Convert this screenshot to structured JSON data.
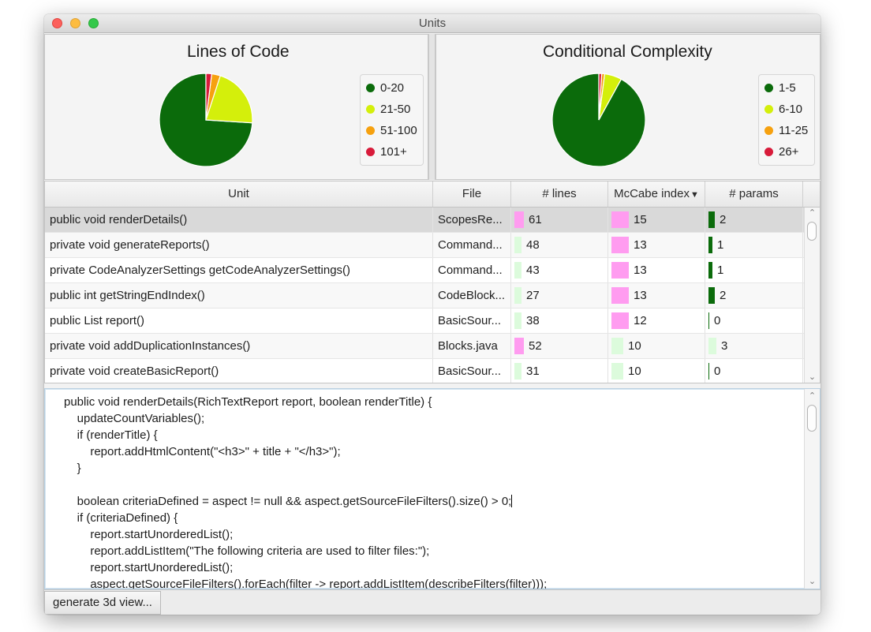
{
  "window": {
    "title": "Units"
  },
  "colors": {
    "dark_green": "#0b6b0b",
    "yellow_green": "#d4ef0b",
    "orange": "#f6a10f",
    "red": "#d81b3a",
    "pink": "#ff9cf0",
    "light_green": "#dcfbdc"
  },
  "charts": [
    {
      "chart_data": {
        "type": "pie",
        "title": "Lines of Code",
        "categories": [
          "0-20",
          "21-50",
          "51-100",
          "101+"
        ],
        "values": [
          74,
          21,
          3,
          2
        ],
        "colors": [
          "#0b6b0b",
          "#d4ef0b",
          "#f6a10f",
          "#d81b3a"
        ],
        "legend": "right"
      },
      "legend_items": [
        "0-20",
        "21-50",
        "51-100",
        "101+"
      ]
    },
    {
      "chart_data": {
        "type": "pie",
        "title": "Conditional Complexity",
        "categories": [
          "1-5",
          "6-10",
          "11-25",
          "26+"
        ],
        "values": [
          92,
          6,
          1,
          1
        ],
        "colors": [
          "#0b6b0b",
          "#d4ef0b",
          "#f6a10f",
          "#d81b3a"
        ],
        "legend": "right"
      },
      "legend_items": [
        "1-5",
        "6-10",
        "11-25",
        "26+"
      ]
    }
  ],
  "table": {
    "columns": [
      "Unit",
      "File",
      "# lines",
      "McCabe index",
      "# params"
    ],
    "sort_indicator": "▼",
    "rows": [
      {
        "unit": "public void renderDetails()",
        "file": "ScopesRe...",
        "lines": "61",
        "mccabe": "15",
        "params": "2"
      },
      {
        "unit": "private void generateReports()",
        "file": "Command...",
        "lines": "48",
        "mccabe": "13",
        "params": "1"
      },
      {
        "unit": "private CodeAnalyzerSettings getCodeAnalyzerSettings()",
        "file": "Command...",
        "lines": "43",
        "mccabe": "13",
        "params": "1"
      },
      {
        "unit": "public int getStringEndIndex()",
        "file": "CodeBlock...",
        "lines": "27",
        "mccabe": "13",
        "params": "2"
      },
      {
        "unit": "public List report()",
        "file": "BasicSour...",
        "lines": "38",
        "mccabe": "12",
        "params": "0"
      },
      {
        "unit": "private void addDuplicationInstances()",
        "file": "Blocks.java",
        "lines": "52",
        "mccabe": "10",
        "params": "3"
      },
      {
        "unit": "private void createBasicReport()",
        "file": "BasicSour...",
        "lines": "31",
        "mccabe": "10",
        "params": "0"
      }
    ],
    "selected_row": 0
  },
  "code": {
    "lines": [
      "public void renderDetails(RichTextReport report, boolean renderTitle) {",
      "    updateCountVariables();",
      "    if (renderTitle) {",
      "        report.addHtmlContent(\"<h3>\" + title + \"</h3>\");",
      "    }",
      "",
      "    boolean criteriaDefined = aspect != null && aspect.getSourceFileFilters().size() > 0;",
      "    if (criteriaDefined) {",
      "        report.startUnorderedList();",
      "        report.addListItem(\"The following criteria are used to filter files:\");",
      "        report.startUnorderedList();",
      "        aspect.getSourceFileFilters().forEach(filter -> report.addListItem(describeFilters(filter)));"
    ]
  },
  "buttons": {
    "generate_3d": "generate 3d view..."
  },
  "scroll_up": "⌃",
  "scroll_down": "⌄"
}
